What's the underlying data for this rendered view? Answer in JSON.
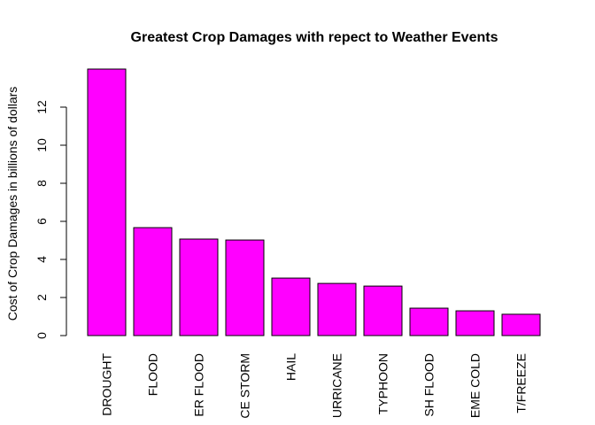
{
  "chart_data": {
    "type": "bar",
    "title": "Greatest Crop Damages with repect to Weather Events",
    "y_label": "Cost of Crop Damages in billions of dollars",
    "categories": [
      "DROUGHT",
      "FLOOD",
      "ER FLOOD",
      "CE STORM",
      "HAIL",
      "URRICANE",
      "TYPHOON",
      "SH FLOOD",
      "EME COLD",
      "T/FREEZE"
    ],
    "values": [
      14.0,
      5.67,
      5.07,
      5.02,
      3.02,
      2.74,
      2.6,
      1.44,
      1.3,
      1.12
    ],
    "color": "#ff00ff",
    "ylim": [
      0,
      14
    ],
    "yticks": [
      0,
      2,
      4,
      6,
      8,
      10,
      12
    ],
    "grid": false
  }
}
